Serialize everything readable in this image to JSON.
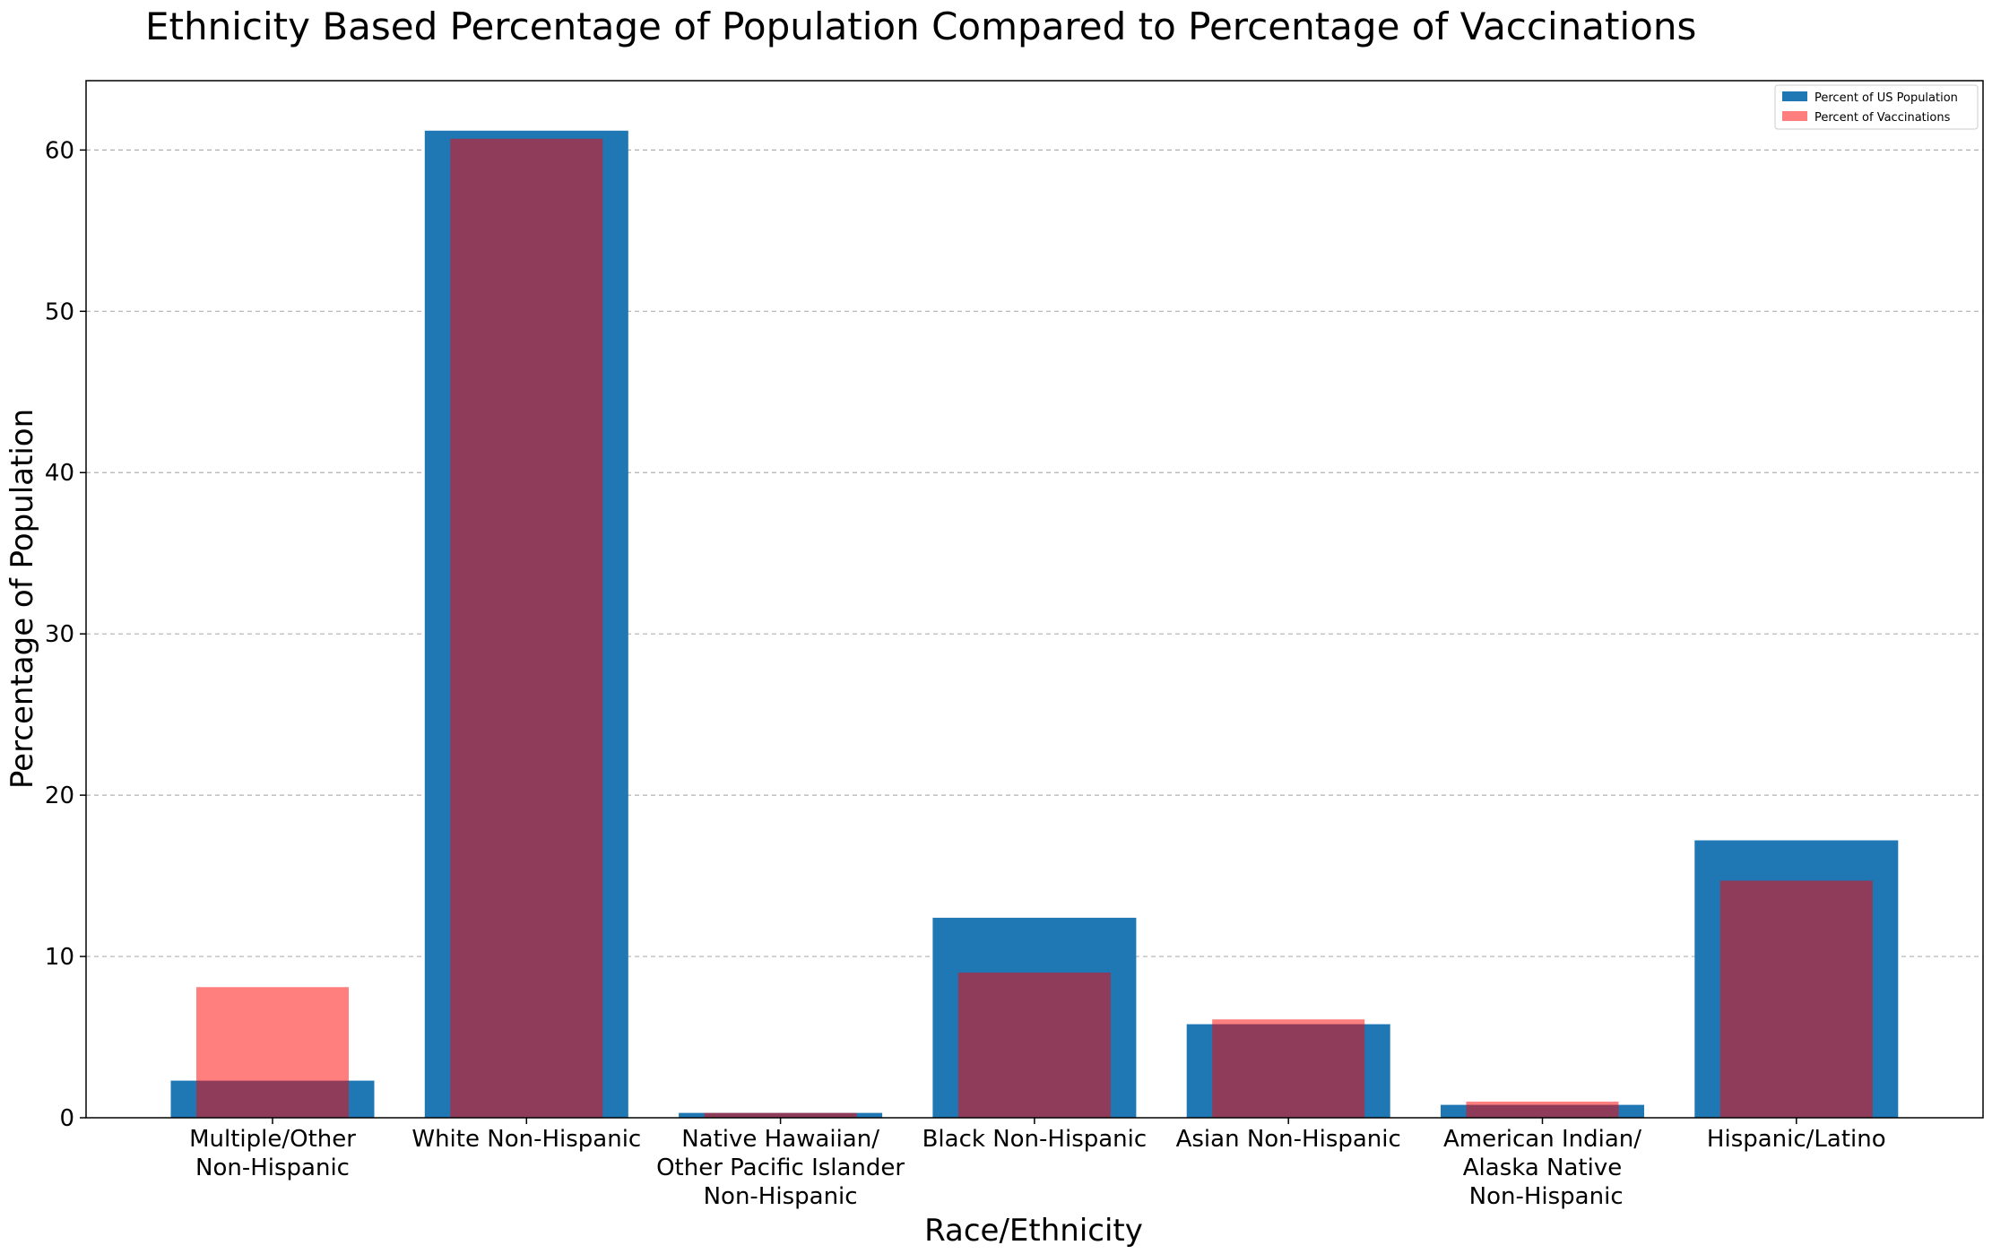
{
  "chart_data": {
    "type": "bar",
    "title": "Ethnicity Based Percentage of Population Compared to Percentage of Vaccinations",
    "xlabel": "Race/Ethnicity",
    "ylabel": "Percentage of Population",
    "ylim": [
      0,
      64.3
    ],
    "yticks": [
      0,
      10,
      20,
      30,
      40,
      50,
      60
    ],
    "grid": "y dashed",
    "legend_position": "top-right",
    "categories": [
      [
        "Multiple/Other",
        "Non-Hispanic"
      ],
      [
        "White Non-Hispanic"
      ],
      [
        "Native Hawaiian/",
        "Other Pacific Islander",
        "Non-Hispanic"
      ],
      [
        "Black Non-Hispanic"
      ],
      [
        "Asian Non-Hispanic"
      ],
      [
        "American Indian/",
        "Alaska Native",
        " Non-Hispanic"
      ],
      [
        "Hispanic/Latino"
      ]
    ],
    "series": [
      {
        "name": "Percent of US Population",
        "color": "#1f77b4",
        "opacity": 1.0,
        "values": [
          2.3,
          61.2,
          0.3,
          12.4,
          5.8,
          0.8,
          17.2
        ]
      },
      {
        "name": "Percent of Vaccinations",
        "color": "#ff0000",
        "opacity": 0.5,
        "values": [
          8.1,
          60.7,
          0.3,
          9.0,
          6.1,
          1.0,
          14.7
        ]
      }
    ]
  }
}
